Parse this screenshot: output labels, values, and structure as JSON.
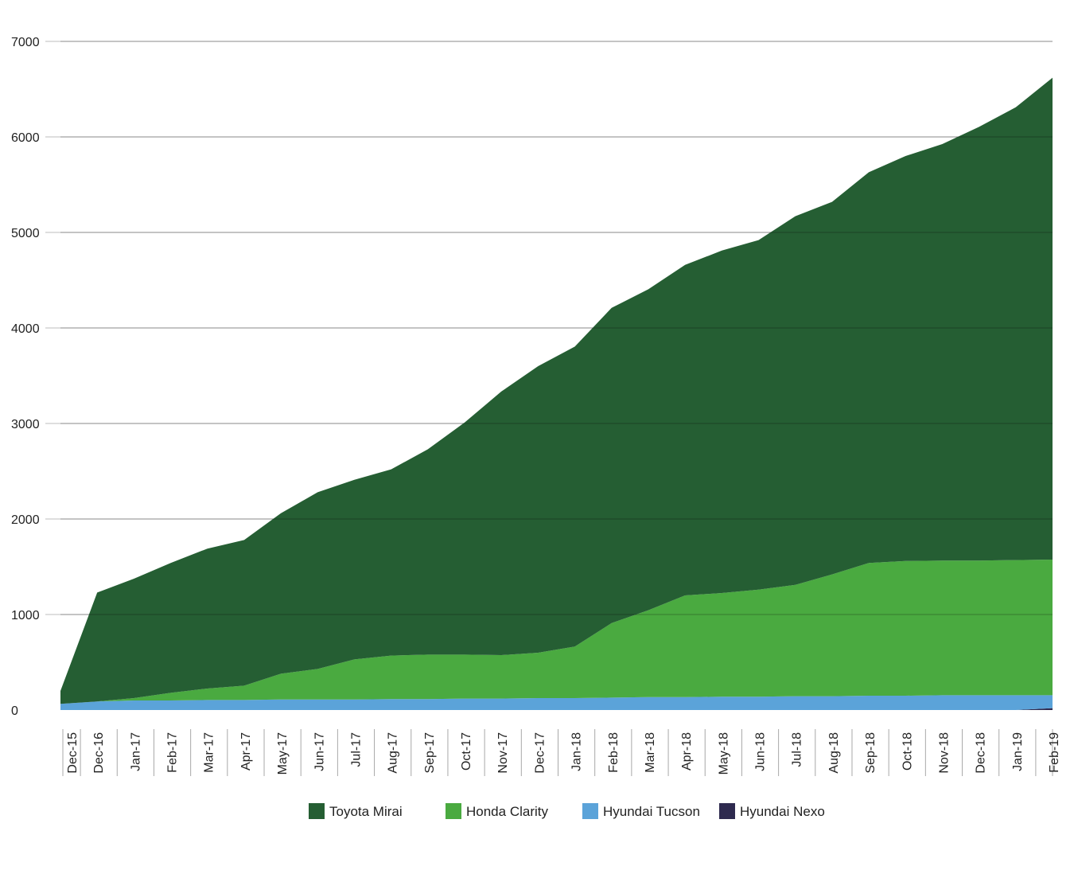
{
  "chart_data": {
    "type": "area",
    "stacked": true,
    "title": "",
    "xlabel": "",
    "ylabel": "",
    "ylim": [
      0,
      7000
    ],
    "yticks": [
      0,
      1000,
      2000,
      3000,
      4000,
      5000,
      6000,
      7000
    ],
    "grid": "horizontal",
    "legend_position": "bottom",
    "categories": [
      "Dec-15",
      "Dec-16",
      "Jan-17",
      "Feb-17",
      "Mar-17",
      "Apr-17",
      "May-17",
      "Jun-17",
      "Jul-17",
      "Aug-17",
      "Sep-17",
      "Oct-17",
      "Nov-17",
      "Dec-17",
      "Jan-18",
      "Feb-18",
      "Mar-18",
      "Apr-18",
      "May-18",
      "Jun-18",
      "Jul-18",
      "Aug-18",
      "Sep-18",
      "Oct-18",
      "Nov-18",
      "Dec-18",
      "Jan-19",
      "Feb-19"
    ],
    "series": [
      {
        "name": "Hyundai Nexo",
        "color": "#2e2a4f",
        "values": [
          0,
          0,
          0,
          0,
          0,
          0,
          0,
          0,
          0,
          0,
          0,
          0,
          0,
          0,
          0,
          0,
          0,
          0,
          0,
          0,
          0,
          0,
          0,
          0,
          0,
          0,
          0,
          20
        ]
      },
      {
        "name": "Hyundai Tucson",
        "color": "#5ba3d9",
        "values": [
          65,
          90,
          100,
          100,
          105,
          105,
          110,
          110,
          110,
          115,
          115,
          120,
          120,
          125,
          125,
          130,
          135,
          135,
          140,
          140,
          145,
          145,
          150,
          150,
          155,
          155,
          155,
          135
        ]
      },
      {
        "name": "Honda Clarity",
        "color": "#4aaa40",
        "values": [
          0,
          0,
          25,
          80,
          120,
          150,
          270,
          320,
          420,
          455,
          465,
          460,
          455,
          475,
          540,
          780,
          910,
          1065,
          1085,
          1120,
          1165,
          1275,
          1390,
          1410,
          1410,
          1410,
          1415,
          1420
        ]
      },
      {
        "name": "Toyota Mirai",
        "color": "#255e33",
        "values": [
          135,
          1140,
          1250,
          1360,
          1465,
          1525,
          1680,
          1850,
          1880,
          1950,
          2150,
          2430,
          2760,
          3000,
          3140,
          3300,
          3360,
          3460,
          3585,
          3660,
          3860,
          3900,
          4090,
          4240,
          4360,
          4540,
          4740,
          5045
        ]
      }
    ],
    "legend_order": [
      "Toyota Mirai",
      "Honda Clarity",
      "Hyundai Tucson",
      "Hyundai Nexo"
    ]
  }
}
